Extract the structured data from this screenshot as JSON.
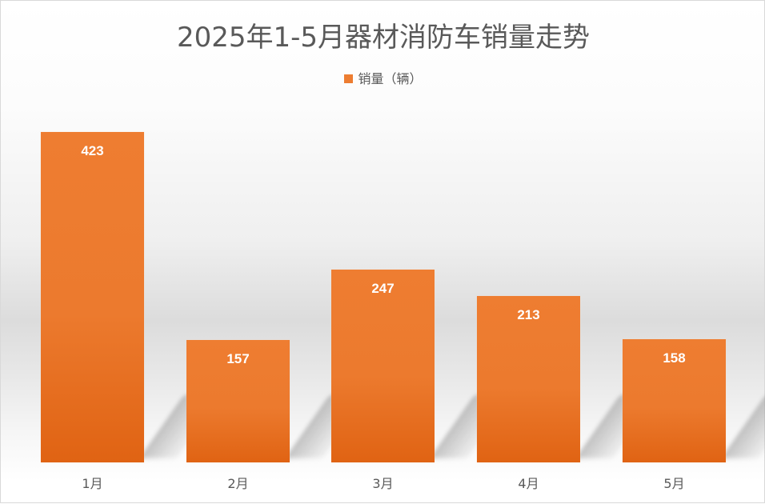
{
  "chart_data": {
    "type": "bar",
    "title": "2025年1-5月器材消防车销量走势",
    "categories": [
      "1月",
      "2月",
      "3月",
      "4月",
      "5月"
    ],
    "series": [
      {
        "name": "销量（辆）",
        "values": [
          423,
          157,
          247,
          213,
          158
        ],
        "color": "#ED7D31"
      }
    ],
    "data_labels": [
      "423",
      "157",
      "247",
      "213",
      "158"
    ],
    "xlabel": "",
    "ylabel": "",
    "ylim": [
      0,
      450
    ],
    "grid": false,
    "legend_position": "top",
    "y_axis_visible": false
  },
  "legend": {
    "label": "销量（辆）",
    "color": "#ED7D31"
  }
}
